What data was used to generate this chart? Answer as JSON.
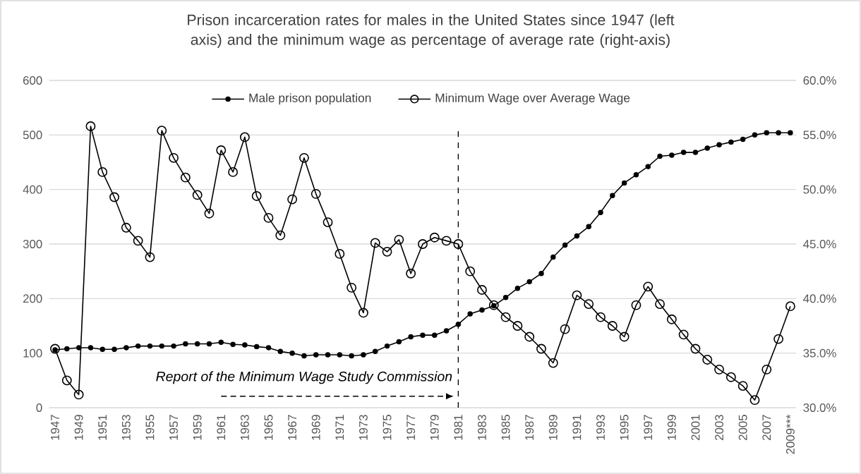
{
  "chart_data": {
    "type": "line",
    "title": "Prison incarceration rates for males in the United States since 1947 (left axis) and the minimum  wage as percentage of average rate (right-axis)",
    "categories": [
      "1947",
      null,
      "1949",
      null,
      "1951",
      null,
      "1953",
      null,
      "1955",
      null,
      "1957",
      null,
      "1959",
      null,
      "1961",
      null,
      "1963",
      null,
      "1965",
      null,
      "1967",
      null,
      "1969",
      null,
      "1971",
      null,
      "1973",
      null,
      "1975",
      null,
      "1977",
      null,
      "1979",
      null,
      "1981",
      null,
      "1983",
      null,
      "1985",
      null,
      "1987",
      null,
      "1989",
      null,
      "1991",
      null,
      "1993",
      null,
      "1995",
      null,
      "1997",
      null,
      "1999",
      null,
      "2001",
      null,
      "2003",
      null,
      "2005",
      null,
      "2007",
      null,
      "2009***"
    ],
    "series": [
      {
        "name": "Male prison population",
        "color": "#000000",
        "values": [
          106,
          108,
          110,
          110,
          107,
          107,
          110,
          113,
          113,
          113,
          113,
          117,
          117,
          117,
          120,
          116,
          115,
          112,
          110,
          103,
          100,
          95,
          97,
          97,
          97,
          95,
          97,
          103,
          113,
          121,
          130,
          133,
          133,
          141,
          153,
          172,
          179,
          187,
          202,
          219,
          231,
          246,
          276,
          298,
          315,
          332,
          358,
          389,
          412,
          427,
          442,
          461,
          463,
          468,
          468,
          476,
          482,
          487,
          492,
          500,
          504,
          504,
          504
        ]
      },
      {
        "name": "Minimum Wage over Average Wage",
        "color": "#000000",
        "axis": "y2",
        "values": [
          35.4,
          32.5,
          31.2,
          55.8,
          51.6,
          49.3,
          46.5,
          45.3,
          43.8,
          55.4,
          52.9,
          51.1,
          49.5,
          47.8,
          53.6,
          51.6,
          54.8,
          49.4,
          47.4,
          45.8,
          49.1,
          52.9,
          49.6,
          47.0,
          44.1,
          41.0,
          38.7,
          45.1,
          44.3,
          45.4,
          42.3,
          45.0,
          45.6,
          45.3,
          45.0,
          42.5,
          40.8,
          39.4,
          38.3,
          37.5,
          36.5,
          35.4,
          34.1,
          37.2,
          40.3,
          39.5,
          38.3,
          37.5,
          36.5,
          39.4,
          41.1,
          39.5,
          38.1,
          36.7,
          35.4,
          34.4,
          33.5,
          32.8,
          32.0,
          30.7,
          33.5,
          36.3,
          39.3
        ]
      }
    ],
    "ylim": [
      0,
      600
    ],
    "yticks": [
      0,
      100,
      200,
      300,
      400,
      500,
      600
    ],
    "y2lim": [
      30,
      60
    ],
    "y2ticks": [
      {
        "value": 30,
        "label": "30.0%"
      },
      {
        "value": 35,
        "label": "35.0%"
      },
      {
        "value": 40,
        "label": "40.0%"
      },
      {
        "value": 45,
        "label": "45.0%"
      },
      {
        "value": 50,
        "label": "50.0%"
      },
      {
        "value": 55,
        "label": "55.0%"
      },
      {
        "value": 60,
        "label": "60.0%"
      }
    ],
    "ref_lines": [
      {
        "axis": "x",
        "value": "1981",
        "label": "Report of the Minimum Wage Study Commission",
        "line_style": "dashed",
        "color": "#000000"
      }
    ],
    "grid": "y",
    "legend": "top",
    "marker": "circle",
    "line_style": "solid"
  }
}
